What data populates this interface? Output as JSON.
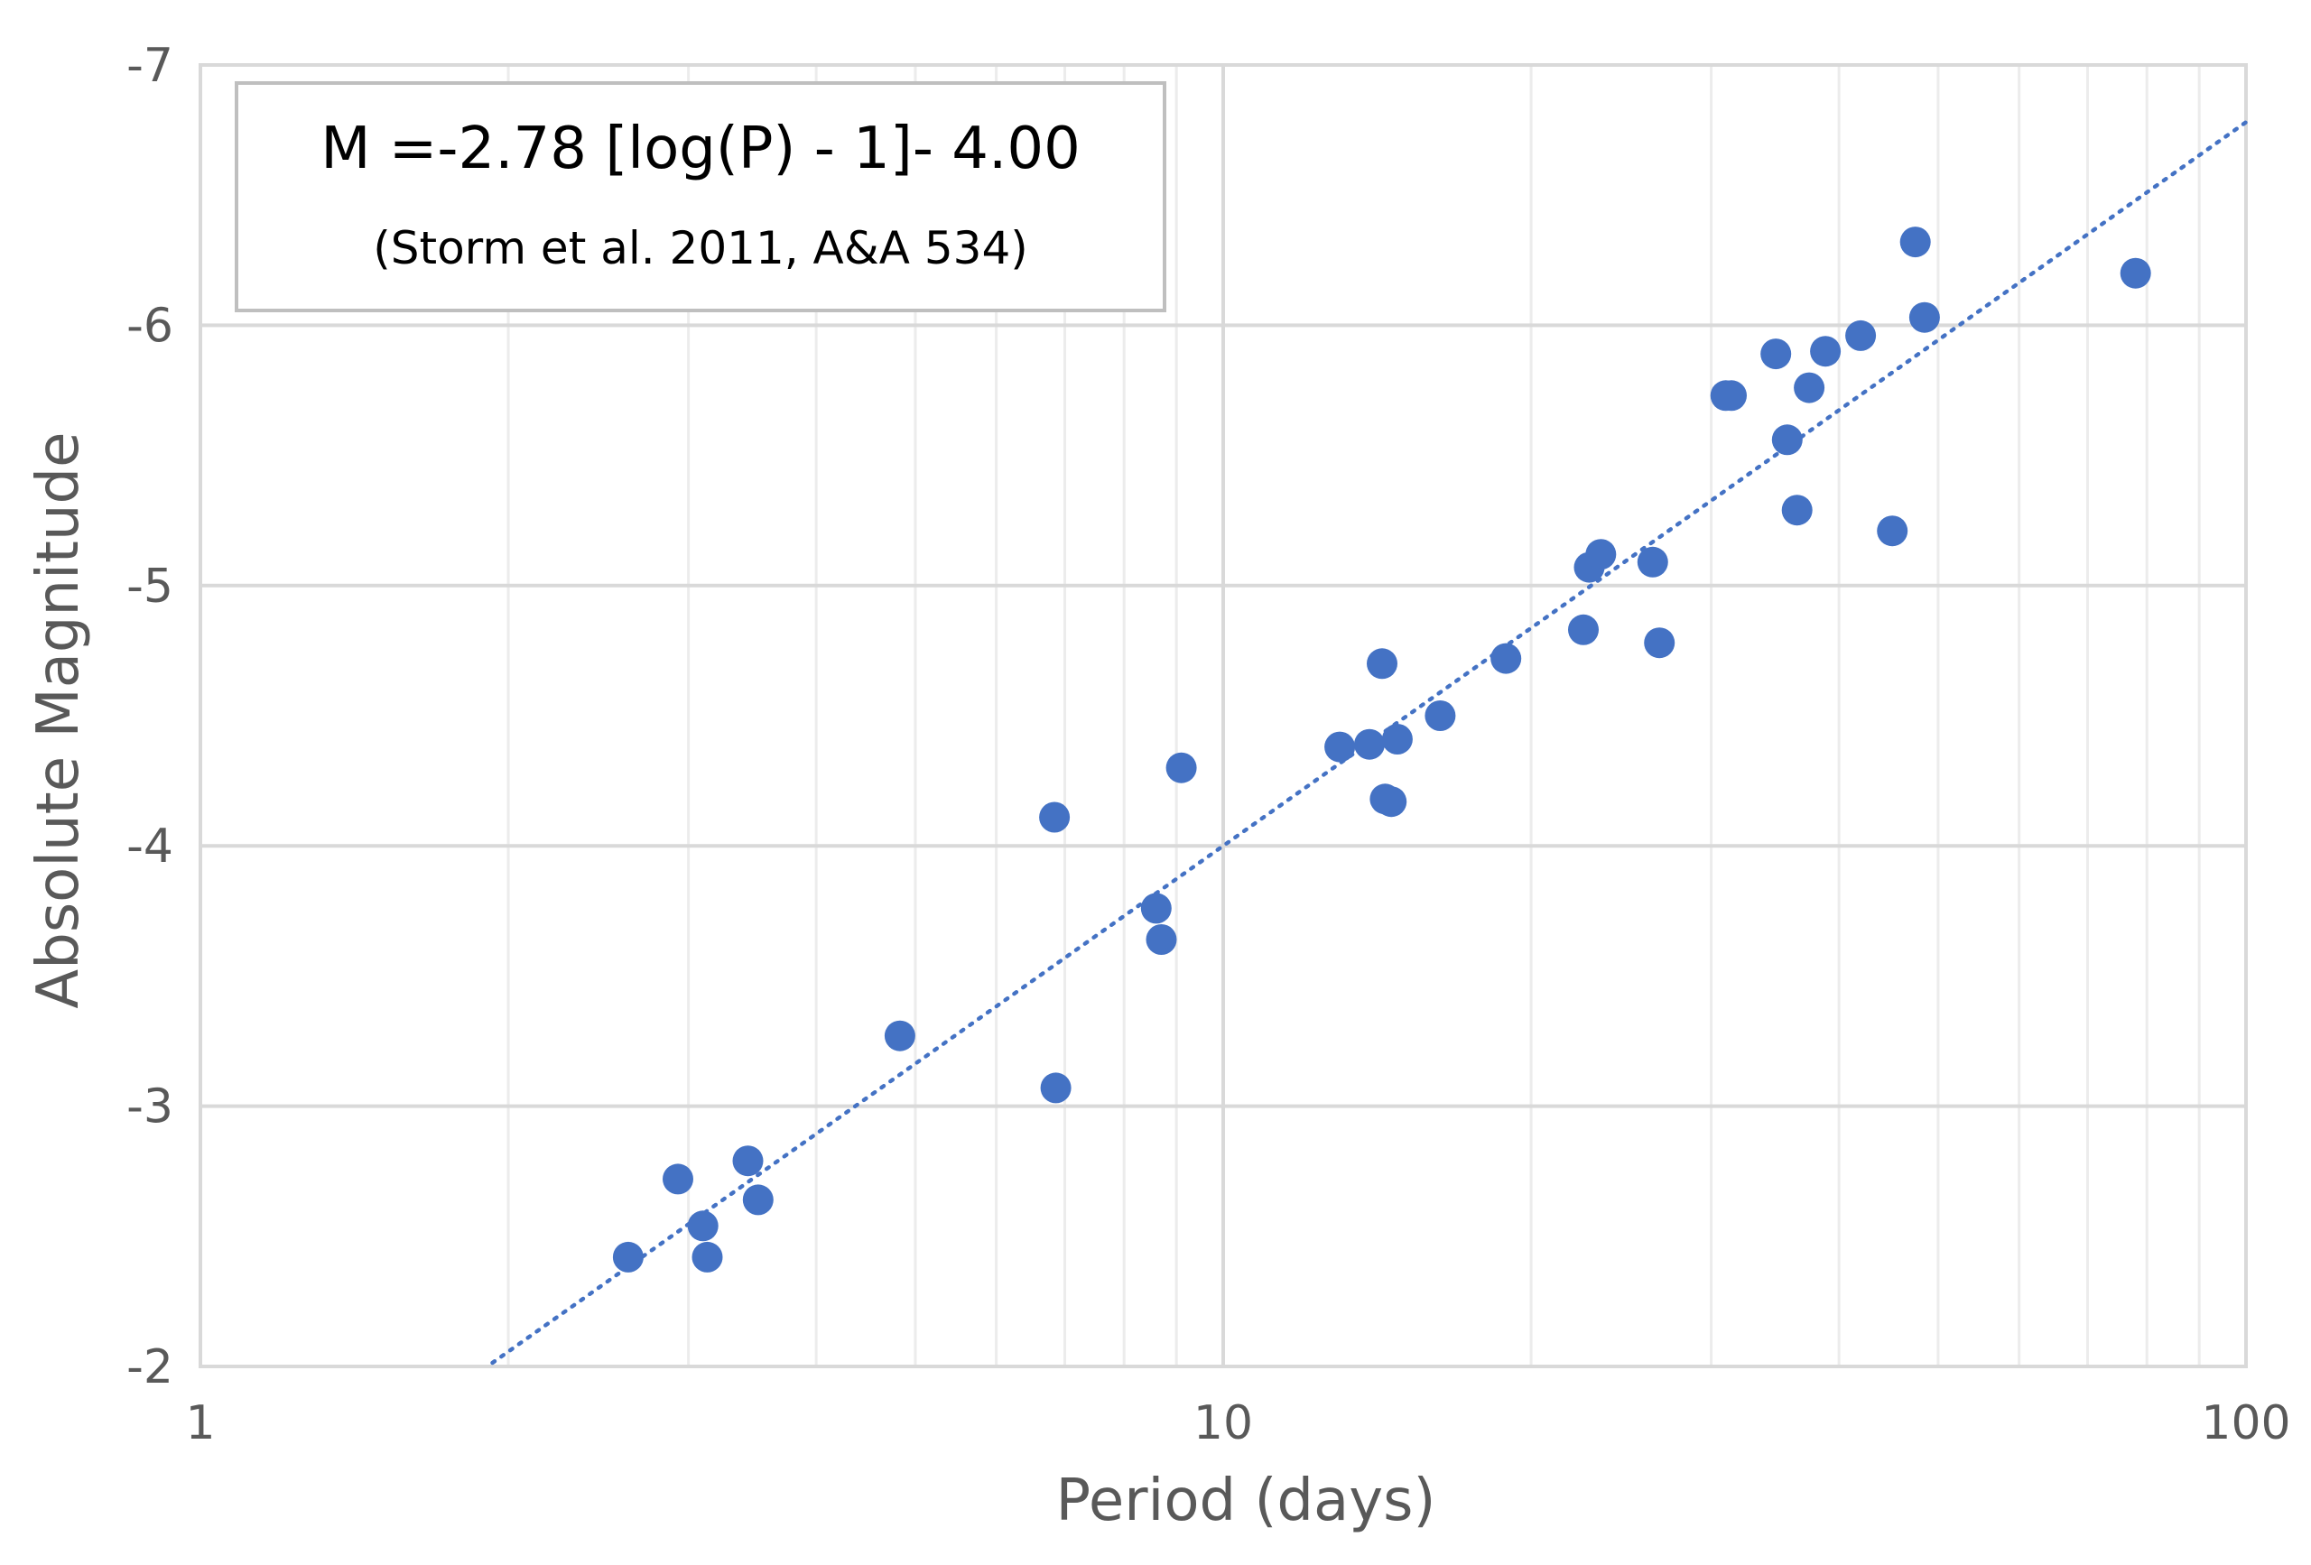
{
  "chart_data": {
    "type": "scatter",
    "title": "",
    "xlabel": "Period (days)",
    "ylabel": "Absolute Magnitude",
    "x_scale": "log",
    "xlim": [
      1,
      100
    ],
    "ylim": [
      -2,
      -7
    ],
    "y_reversed": true,
    "grid": true,
    "x_ticks": [
      1,
      10,
      100
    ],
    "x_tick_labels": [
      "1",
      "10",
      "100"
    ],
    "y_ticks": [
      -7,
      -6,
      -5,
      -4,
      -3,
      -2
    ],
    "y_tick_labels": [
      "-7",
      "-6",
      "-5",
      "-4",
      "-3",
      "-2"
    ],
    "legend_placement": "top-left",
    "annotation": {
      "equation": "M =-2.78 [log(P) - 1]- 4.00",
      "source": "(Storm et al. 2011, A&A 534)"
    },
    "trendline": {
      "slope": -2.78,
      "intercept": -4.0,
      "x_range": [
        1.93,
        100
      ],
      "style": "dotted"
    },
    "series": [
      {
        "color": "#4472c4",
        "points": [
          {
            "x": 2.62,
            "y": -2.42
          },
          {
            "x": 2.93,
            "y": -2.72
          },
          {
            "x": 3.1,
            "y": -2.54
          },
          {
            "x": 3.13,
            "y": -2.42
          },
          {
            "x": 3.43,
            "y": -2.79
          },
          {
            "x": 3.51,
            "y": -2.64
          },
          {
            "x": 4.83,
            "y": -3.27
          },
          {
            "x": 6.86,
            "y": -3.07
          },
          {
            "x": 6.84,
            "y": -4.11
          },
          {
            "x": 8.6,
            "y": -3.76
          },
          {
            "x": 8.7,
            "y": -3.64
          },
          {
            "x": 9.1,
            "y": -4.3
          },
          {
            "x": 13.0,
            "y": -4.38
          },
          {
            "x": 13.9,
            "y": -4.39
          },
          {
            "x": 14.3,
            "y": -4.7
          },
          {
            "x": 14.4,
            "y": -4.18
          },
          {
            "x": 14.6,
            "y": -4.17
          },
          {
            "x": 14.8,
            "y": -4.41
          },
          {
            "x": 16.3,
            "y": -4.5
          },
          {
            "x": 18.9,
            "y": -4.72
          },
          {
            "x": 22.5,
            "y": -4.83
          },
          {
            "x": 22.8,
            "y": -5.07
          },
          {
            "x": 23.4,
            "y": -5.12
          },
          {
            "x": 26.3,
            "y": -5.09
          },
          {
            "x": 26.7,
            "y": -4.78
          },
          {
            "x": 31.0,
            "y": -5.73
          },
          {
            "x": 31.4,
            "y": -5.73
          },
          {
            "x": 34.7,
            "y": -5.89
          },
          {
            "x": 35.6,
            "y": -5.56
          },
          {
            "x": 36.4,
            "y": -5.29
          },
          {
            "x": 37.4,
            "y": -5.76
          },
          {
            "x": 38.8,
            "y": -5.9
          },
          {
            "x": 42.0,
            "y": -5.96
          },
          {
            "x": 45.1,
            "y": -5.21
          },
          {
            "x": 47.5,
            "y": -6.32
          },
          {
            "x": 48.5,
            "y": -6.03
          },
          {
            "x": 78.0,
            "y": -6.2
          }
        ]
      }
    ]
  }
}
